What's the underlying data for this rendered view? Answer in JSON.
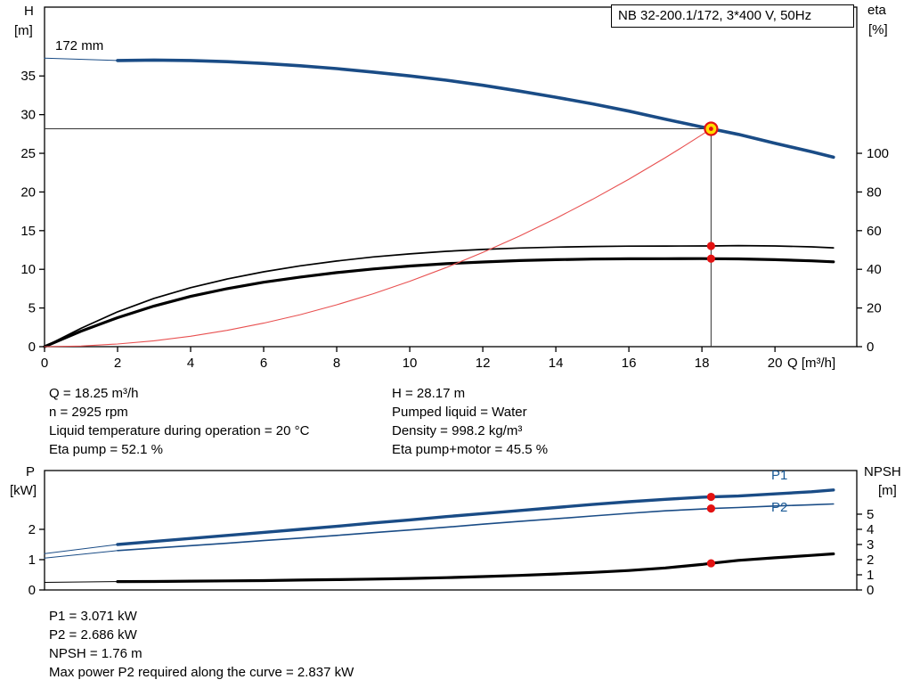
{
  "header": {
    "model_box": "NB 32-200.1/172, 3*400 V, 50Hz"
  },
  "axis_labels": {
    "top_left_1": "H",
    "top_left_2": "[m]",
    "top_right_1": "eta",
    "top_right_2": "[%]",
    "x": "Q [m³/h]",
    "bottom_left_1": "P",
    "bottom_left_2": "[kW]",
    "bottom_right_1": "NPSH",
    "bottom_right_2": "[m]"
  },
  "curve_labels": {
    "impeller": "172 mm",
    "p1": "P1",
    "p2": "P2"
  },
  "results_top": {
    "left": [
      "Q = 18.25 m³/h",
      "n = 2925 rpm",
      "Liquid temperature during operation = 20 °C",
      "Eta pump = 52.1 %"
    ],
    "right": [
      "H = 28.17 m",
      "Pumped liquid = Water",
      "Density = 998.2 kg/m³",
      "Eta pump+motor = 45.5 %"
    ]
  },
  "results_bottom": [
    "P1 = 3.071 kW",
    "P2 = 2.686 kW",
    "NPSH = 1.76 m",
    "Max power P2 required along the curve = 2.837 kW"
  ],
  "colors": {
    "curve_blue": "#1a4c86",
    "marker_red": "#e31212",
    "duty_yellow": "#ffdd00",
    "system_red": "#e85050",
    "crosshair": "#333333"
  },
  "chart_data": [
    {
      "id": "qh",
      "type": "line",
      "title": "NB 32-200.1/172, 3*400 V, 50Hz",
      "x_axis": {
        "label": "Q [m³/h]",
        "min": 0,
        "max": 22.24,
        "ticks": [
          0,
          2,
          4,
          6,
          8,
          10,
          12,
          14,
          16,
          18,
          20
        ]
      },
      "y_left": {
        "label": "H [m]",
        "min": 0,
        "max": 43.9,
        "ticks": [
          0,
          5,
          10,
          15,
          20,
          25,
          30,
          35
        ]
      },
      "y_right": {
        "label": "eta [%]",
        "min": 0,
        "max": 175.6,
        "ticks": [
          0,
          20,
          40,
          60,
          80,
          100
        ]
      },
      "series": [
        {
          "name": "head-curve-lead",
          "axis": "left",
          "color": "#1a4c86",
          "width": 1,
          "points": [
            [
              0,
              37.3
            ],
            [
              2,
              37.0
            ]
          ]
        },
        {
          "name": "head-curve-172mm",
          "axis": "left",
          "color": "#1a4c86",
          "width": 3.6,
          "points": [
            [
              2,
              37.0
            ],
            [
              3,
              37.05
            ],
            [
              4,
              37.0
            ],
            [
              5,
              36.85
            ],
            [
              6,
              36.62
            ],
            [
              7,
              36.32
            ],
            [
              8,
              35.95
            ],
            [
              9,
              35.5
            ],
            [
              10,
              35.0
            ],
            [
              11,
              34.45
            ],
            [
              12,
              33.8
            ],
            [
              13,
              33.05
            ],
            [
              14,
              32.25
            ],
            [
              15,
              31.4
            ],
            [
              16,
              30.45
            ],
            [
              17,
              29.4
            ],
            [
              18,
              28.4
            ],
            [
              18.25,
              28.17
            ],
            [
              19,
              27.45
            ],
            [
              20,
              26.3
            ],
            [
              21,
              25.2
            ],
            [
              21.6,
              24.5
            ]
          ]
        },
        {
          "name": "eta-pump",
          "axis": "right",
          "color": "#000000",
          "width": 1.7,
          "points": [
            [
              0,
              0
            ],
            [
              1,
              9.5
            ],
            [
              2,
              18
            ],
            [
              3,
              25
            ],
            [
              4,
              30.5
            ],
            [
              5,
              35
            ],
            [
              6,
              38.7
            ],
            [
              7,
              41.8
            ],
            [
              8,
              44.3
            ],
            [
              9,
              46.4
            ],
            [
              10,
              48.0
            ],
            [
              11,
              49.3
            ],
            [
              12,
              50.3
            ],
            [
              13,
              51.0
            ],
            [
              14,
              51.5
            ],
            [
              15,
              51.8
            ],
            [
              16,
              52.0
            ],
            [
              17,
              52.05
            ],
            [
              18,
              52.08
            ],
            [
              18.25,
              52.1
            ],
            [
              19,
              52.25
            ],
            [
              20,
              52.1
            ],
            [
              21,
              51.6
            ],
            [
              21.6,
              51.1
            ]
          ]
        },
        {
          "name": "eta-pump-motor",
          "axis": "right",
          "color": "#000000",
          "width": 3.2,
          "points": [
            [
              0,
              0
            ],
            [
              1,
              8
            ],
            [
              2,
              15
            ],
            [
              3,
              21
            ],
            [
              4,
              26
            ],
            [
              5,
              30
            ],
            [
              6,
              33.3
            ],
            [
              7,
              36.0
            ],
            [
              8,
              38.3
            ],
            [
              9,
              40.2
            ],
            [
              10,
              41.7
            ],
            [
              11,
              42.9
            ],
            [
              12,
              43.8
            ],
            [
              13,
              44.5
            ],
            [
              14,
              45.0
            ],
            [
              15,
              45.3
            ],
            [
              16,
              45.45
            ],
            [
              17,
              45.5
            ],
            [
              18,
              45.52
            ],
            [
              18.25,
              45.5
            ],
            [
              19,
              45.4
            ],
            [
              20,
              45.0
            ],
            [
              21,
              44.4
            ],
            [
              21.6,
              43.9
            ]
          ]
        },
        {
          "name": "system-curve",
          "axis": "left",
          "color": "#e85050",
          "width": 1.1,
          "points": [
            [
              0,
              0
            ],
            [
              1,
              0.08
            ],
            [
              2,
              0.34
            ],
            [
              3,
              0.76
            ],
            [
              4,
              1.35
            ],
            [
              5,
              2.11
            ],
            [
              6,
              3.04
            ],
            [
              7,
              4.14
            ],
            [
              8,
              5.41
            ],
            [
              9,
              6.85
            ],
            [
              10,
              8.46
            ],
            [
              11,
              10.23
            ],
            [
              12,
              12.18
            ],
            [
              13,
              14.29
            ],
            [
              14,
              16.58
            ],
            [
              15,
              19.03
            ],
            [
              16,
              21.65
            ],
            [
              17,
              24.44
            ],
            [
              17.5,
              25.9
            ],
            [
              18,
              27.4
            ],
            [
              18.25,
              28.17
            ]
          ]
        }
      ],
      "annotations": {
        "impeller_label": "172 mm",
        "duty_point": {
          "q": 18.25,
          "h": 28.17
        },
        "markers": [
          {
            "name": "eta-pump-marker",
            "axis": "right",
            "q": 18.25,
            "value": 52.1
          },
          {
            "name": "eta-pump-motor-marker",
            "axis": "right",
            "q": 18.25,
            "value": 45.5
          }
        ]
      }
    },
    {
      "id": "pq",
      "type": "line",
      "x_axis": {
        "label": "Q [m³/h]",
        "min": 0,
        "max": 22.24,
        "ticks": []
      },
      "y_left": {
        "label": "P [kW]",
        "min": 0,
        "max": 3.94,
        "ticks": [
          0,
          1,
          2
        ]
      },
      "y_right": {
        "label": "NPSH [m]",
        "min": 0,
        "max": 7.88,
        "ticks": [
          0,
          1,
          2,
          3,
          4,
          5
        ]
      },
      "series": [
        {
          "name": "p1-lead",
          "axis": "left",
          "color": "#1a4c86",
          "width": 1,
          "points": [
            [
              0,
              1.2
            ],
            [
              2,
              1.5
            ]
          ]
        },
        {
          "name": "p1-curve",
          "axis": "left",
          "color": "#1a4c86",
          "width": 3.4,
          "points": [
            [
              2,
              1.5
            ],
            [
              3,
              1.6
            ],
            [
              4,
              1.7
            ],
            [
              5,
              1.8
            ],
            [
              6,
              1.9
            ],
            [
              7,
              2.0
            ],
            [
              8,
              2.1
            ],
            [
              9,
              2.21
            ],
            [
              10,
              2.31
            ],
            [
              11,
              2.42
            ],
            [
              12,
              2.52
            ],
            [
              13,
              2.62
            ],
            [
              14,
              2.72
            ],
            [
              15,
              2.82
            ],
            [
              16,
              2.91
            ],
            [
              17,
              2.99
            ],
            [
              18,
              3.06
            ],
            [
              18.25,
              3.071
            ],
            [
              19,
              3.1
            ],
            [
              20,
              3.17
            ],
            [
              21,
              3.24
            ],
            [
              21.6,
              3.3
            ]
          ]
        },
        {
          "name": "p2-lead",
          "axis": "left",
          "color": "#1a4c86",
          "width": 1,
          "points": [
            [
              0,
              1.05
            ],
            [
              2,
              1.3
            ]
          ]
        },
        {
          "name": "p2-curve",
          "axis": "left",
          "color": "#1a4c86",
          "width": 1.6,
          "points": [
            [
              2,
              1.3
            ],
            [
              3,
              1.38
            ],
            [
              4,
              1.46
            ],
            [
              5,
              1.54
            ],
            [
              6,
              1.63
            ],
            [
              7,
              1.71
            ],
            [
              8,
              1.8
            ],
            [
              9,
              1.89
            ],
            [
              10,
              1.98
            ],
            [
              11,
              2.07
            ],
            [
              12,
              2.17
            ],
            [
              13,
              2.26
            ],
            [
              14,
              2.35
            ],
            [
              15,
              2.44
            ],
            [
              16,
              2.53
            ],
            [
              17,
              2.61
            ],
            [
              18,
              2.67
            ],
            [
              18.25,
              2.686
            ],
            [
              19,
              2.72
            ],
            [
              20,
              2.77
            ],
            [
              21,
              2.81
            ],
            [
              21.6,
              2.837
            ]
          ]
        },
        {
          "name": "npsh-lead",
          "axis": "right",
          "color": "#000000",
          "width": 1,
          "points": [
            [
              0,
              0.5
            ],
            [
              2,
              0.55
            ]
          ]
        },
        {
          "name": "npsh-curve",
          "axis": "right",
          "color": "#000000",
          "width": 3.2,
          "points": [
            [
              2,
              0.55
            ],
            [
              3,
              0.56
            ],
            [
              4,
              0.58
            ],
            [
              5,
              0.6
            ],
            [
              6,
              0.62
            ],
            [
              7,
              0.65
            ],
            [
              8,
              0.68
            ],
            [
              9,
              0.72
            ],
            [
              10,
              0.76
            ],
            [
              11,
              0.81
            ],
            [
              12,
              0.88
            ],
            [
              13,
              0.96
            ],
            [
              14,
              1.05
            ],
            [
              15,
              1.16
            ],
            [
              16,
              1.28
            ],
            [
              17,
              1.45
            ],
            [
              18,
              1.68
            ],
            [
              18.25,
              1.76
            ],
            [
              19,
              1.95
            ],
            [
              20,
              2.12
            ],
            [
              21,
              2.28
            ],
            [
              21.6,
              2.38
            ]
          ]
        }
      ],
      "annotations": {
        "markers": [
          {
            "name": "p1-marker",
            "axis": "left",
            "q": 18.25,
            "value": 3.071
          },
          {
            "name": "p2-marker",
            "axis": "left",
            "q": 18.25,
            "value": 2.686
          },
          {
            "name": "npsh-marker",
            "axis": "right",
            "q": 18.25,
            "value": 1.76
          }
        ]
      }
    }
  ]
}
